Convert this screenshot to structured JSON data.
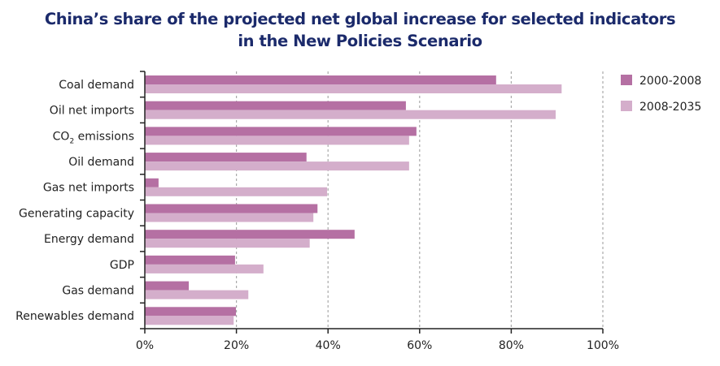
{
  "chart_data": {
    "type": "bar",
    "orientation": "horizontal",
    "title": "China’s share of the projected net global increase for selected indicators in the New Policies Scenario",
    "title_lines": [
      "China’s share of the projected net global increase for selected indicators",
      "in the New Policies Scenario"
    ],
    "categories": [
      "Coal demand",
      "Oil net imports",
      "CO2 emissions",
      "Oil demand",
      "Gas net imports",
      "Generating capacity",
      "Energy demand",
      "GDP",
      "Gas demand",
      "Renewables demand"
    ],
    "series": [
      {
        "name": "2000-2008",
        "color": "#b570a3",
        "values": [
          76.7,
          57.0,
          59.3,
          35.3,
          3.0,
          37.7,
          45.8,
          19.7,
          9.6,
          19.9
        ]
      },
      {
        "name": "2008-2035",
        "color": "#d4aecb",
        "values": [
          91.0,
          89.7,
          57.7,
          57.7,
          39.8,
          36.8,
          36.0,
          25.9,
          22.6,
          19.4
        ]
      }
    ],
    "xlabel": "",
    "ylabel": "",
    "xlim": [
      0,
      100
    ],
    "x_ticks": [
      0,
      20,
      40,
      60,
      80,
      100
    ],
    "x_tick_labels": [
      "0%",
      "20%",
      "40%",
      "60%",
      "80%",
      "100%"
    ],
    "grid": true,
    "grid_style": "dashed vertical",
    "legend_position": "top-right"
  }
}
